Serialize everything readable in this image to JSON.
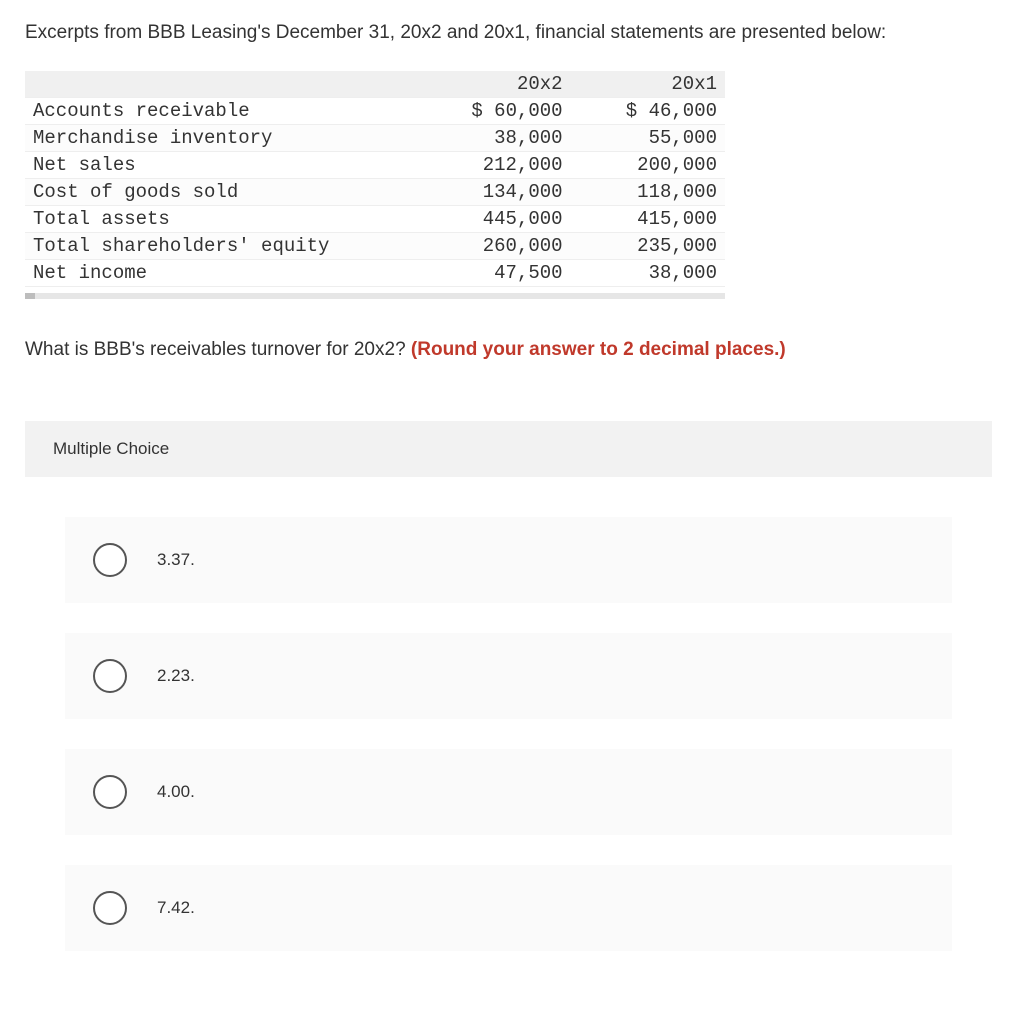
{
  "intro_text": "Excerpts from BBB Leasing's December 31, 20x2 and 20x1, financial statements are presented below:",
  "table": {
    "columns": [
      "",
      "20x2",
      "20x1"
    ],
    "rows": [
      {
        "label": "Accounts receivable",
        "y2": "$ 60,000",
        "y1": "$ 46,000"
      },
      {
        "label": "Merchandise inventory",
        "y2": "38,000",
        "y1": "55,000"
      },
      {
        "label": "Net sales",
        "y2": "212,000",
        "y1": "200,000"
      },
      {
        "label": "Cost of goods sold",
        "y2": "134,000",
        "y1": "118,000"
      },
      {
        "label": "Total assets",
        "y2": "445,000",
        "y1": "415,000"
      },
      {
        "label": "Total shareholders' equity",
        "y2": "260,000",
        "y1": "235,000"
      },
      {
        "label": "Net income",
        "y2": "47,500",
        "y1": "38,000"
      }
    ],
    "header_bg": "#f0f0f0",
    "row_border": "#eeeeee",
    "font_family": "Courier New"
  },
  "question_text": "What is BBB's receivables turnover for 20x2? ",
  "question_hint": "(Round your answer to 2 decimal places.)",
  "hint_color": "#c0392b",
  "mc_label": "Multiple Choice",
  "choices": [
    {
      "label": "3.37."
    },
    {
      "label": "2.23."
    },
    {
      "label": "4.00."
    },
    {
      "label": "7.42."
    }
  ],
  "choice_bg": "#fafafa",
  "mc_header_bg": "#f2f2f2"
}
